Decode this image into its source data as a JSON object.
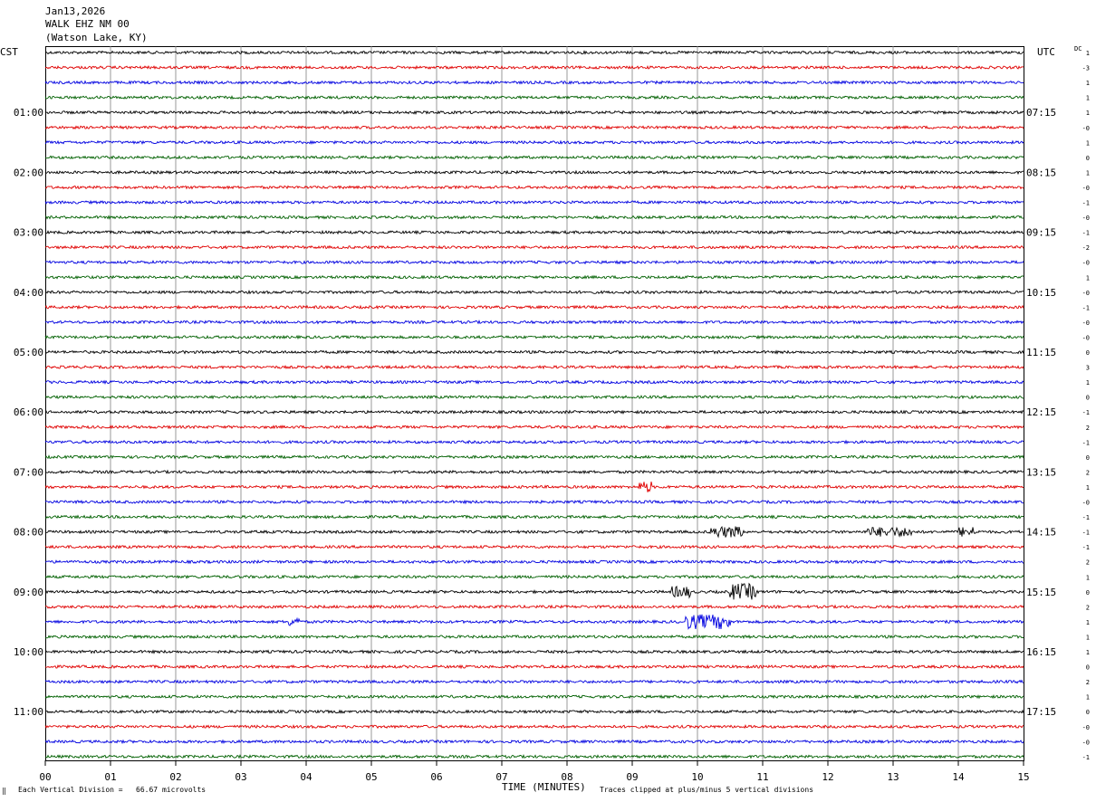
{
  "header": {
    "date": "Jan13,2026",
    "station": "WALK EHZ NM 00",
    "location": "(Watson Lake, KY)"
  },
  "left_timezone": "CST",
  "right_timezone": "UTC",
  "dc_label": "DC",
  "footer": {
    "mark": "‖",
    "scale_text": "Each Vertical Division =   66.67 microvolts",
    "x_axis_title": "TIME (MINUTES)",
    "clip_text": "Traces clipped at plus/minus 5 vertical divisions"
  },
  "colors": [
    "#000000",
    "#e00000",
    "#0000e0",
    "#006000"
  ],
  "chart_data": {
    "type": "line",
    "title": "Jan13,2026 WALK EHZ NM 00 (Watson Lake, KY)",
    "xlabel": "TIME (MINUTES)",
    "ylabel": "",
    "x_ticks": [
      "00",
      "01",
      "02",
      "03",
      "04",
      "05",
      "06",
      "07",
      "08",
      "09",
      "10",
      "11",
      "12",
      "13",
      "14",
      "15"
    ],
    "xlim": [
      0,
      15
    ],
    "rows_per_hour": 4,
    "row_count": 48,
    "left_hour_labels": [
      "01:00",
      "02:00",
      "03:00",
      "04:00",
      "05:00",
      "06:00",
      "07:00",
      "08:00",
      "09:00",
      "10:00",
      "11:00"
    ],
    "right_hour_labels": [
      "07:15",
      "08:15",
      "09:15",
      "10:15",
      "11:15",
      "12:15",
      "13:15",
      "14:15",
      "15:15",
      "16:15",
      "17:15"
    ],
    "dc_offsets": [
      "1",
      "-3",
      "1",
      "1",
      "1",
      "-0",
      "1",
      "0",
      "1",
      "-0",
      "-1",
      "-0",
      "-1",
      "-2",
      "-0",
      "1",
      "-0",
      "-1",
      "-0",
      "-0",
      "0",
      "3",
      "1",
      "0",
      "-1",
      "2",
      "-1",
      "0",
      "2",
      "1",
      "-0",
      "-1",
      "-1",
      "-1",
      "2",
      "1",
      "0",
      "2",
      "1",
      "1",
      "1",
      "0",
      "2",
      "1",
      "0",
      "-0",
      "-0",
      "-1"
    ],
    "events": [
      {
        "row": 29,
        "start_min": 9.1,
        "end_min": 9.3,
        "amp": 2.2
      },
      {
        "row": 32,
        "start_min": 10.2,
        "end_min": 10.7,
        "amp": 2.2
      },
      {
        "row": 32,
        "start_min": 12.6,
        "end_min": 13.3,
        "amp": 1.8
      },
      {
        "row": 32,
        "start_min": 14.0,
        "end_min": 14.3,
        "amp": 1.8
      },
      {
        "row": 36,
        "start_min": 9.6,
        "end_min": 9.9,
        "amp": 2.2
      },
      {
        "row": 36,
        "start_min": 10.5,
        "end_min": 10.9,
        "amp": 3.4
      },
      {
        "row": 38,
        "start_min": 3.7,
        "end_min": 3.9,
        "amp": 1.6
      },
      {
        "row": 38,
        "start_min": 9.8,
        "end_min": 10.5,
        "amp": 3.0
      }
    ]
  }
}
